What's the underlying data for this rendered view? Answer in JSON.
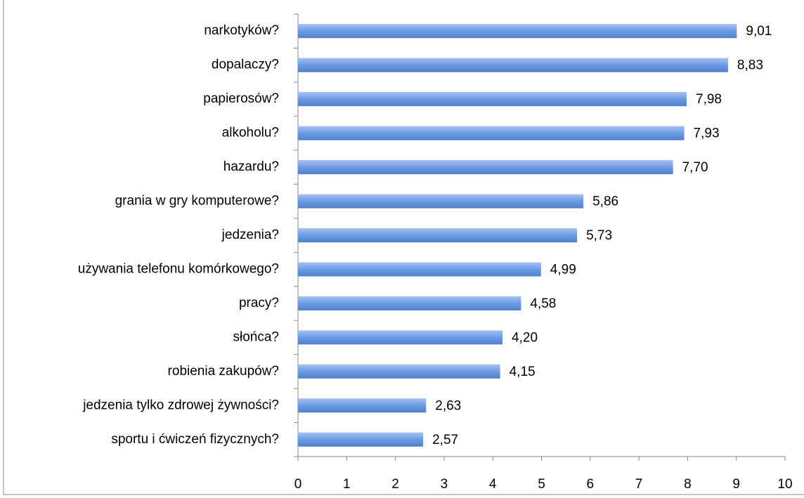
{
  "chart_data": {
    "type": "bar",
    "orientation": "horizontal",
    "categories": [
      "narkotyków?",
      "dopalaczy?",
      "papierosów?",
      "alkoholu?",
      "hazardu?",
      "grania w gry komputerowe?",
      "jedzenia?",
      "używania telefonu komórkowego?",
      "pracy?",
      "słońca?",
      "robienia zakupów?",
      "jedzenia tylko zdrowej żywności?",
      "sportu i ćwiczeń fizycznych?"
    ],
    "values": [
      9.01,
      8.83,
      7.98,
      7.93,
      7.7,
      5.86,
      5.73,
      4.99,
      4.58,
      4.2,
      4.15,
      2.63,
      2.57
    ],
    "value_labels": [
      "9,01",
      "8,83",
      "7,98",
      "7,93",
      "7,70",
      "5,86",
      "5,73",
      "4,99",
      "4,58",
      "4,20",
      "4,15",
      "2,63",
      "2,57"
    ],
    "color": "#5b8fe2",
    "xlim": [
      0,
      10
    ],
    "xticks": [
      0,
      1,
      2,
      3,
      4,
      5,
      6,
      7,
      8,
      9,
      10
    ]
  }
}
